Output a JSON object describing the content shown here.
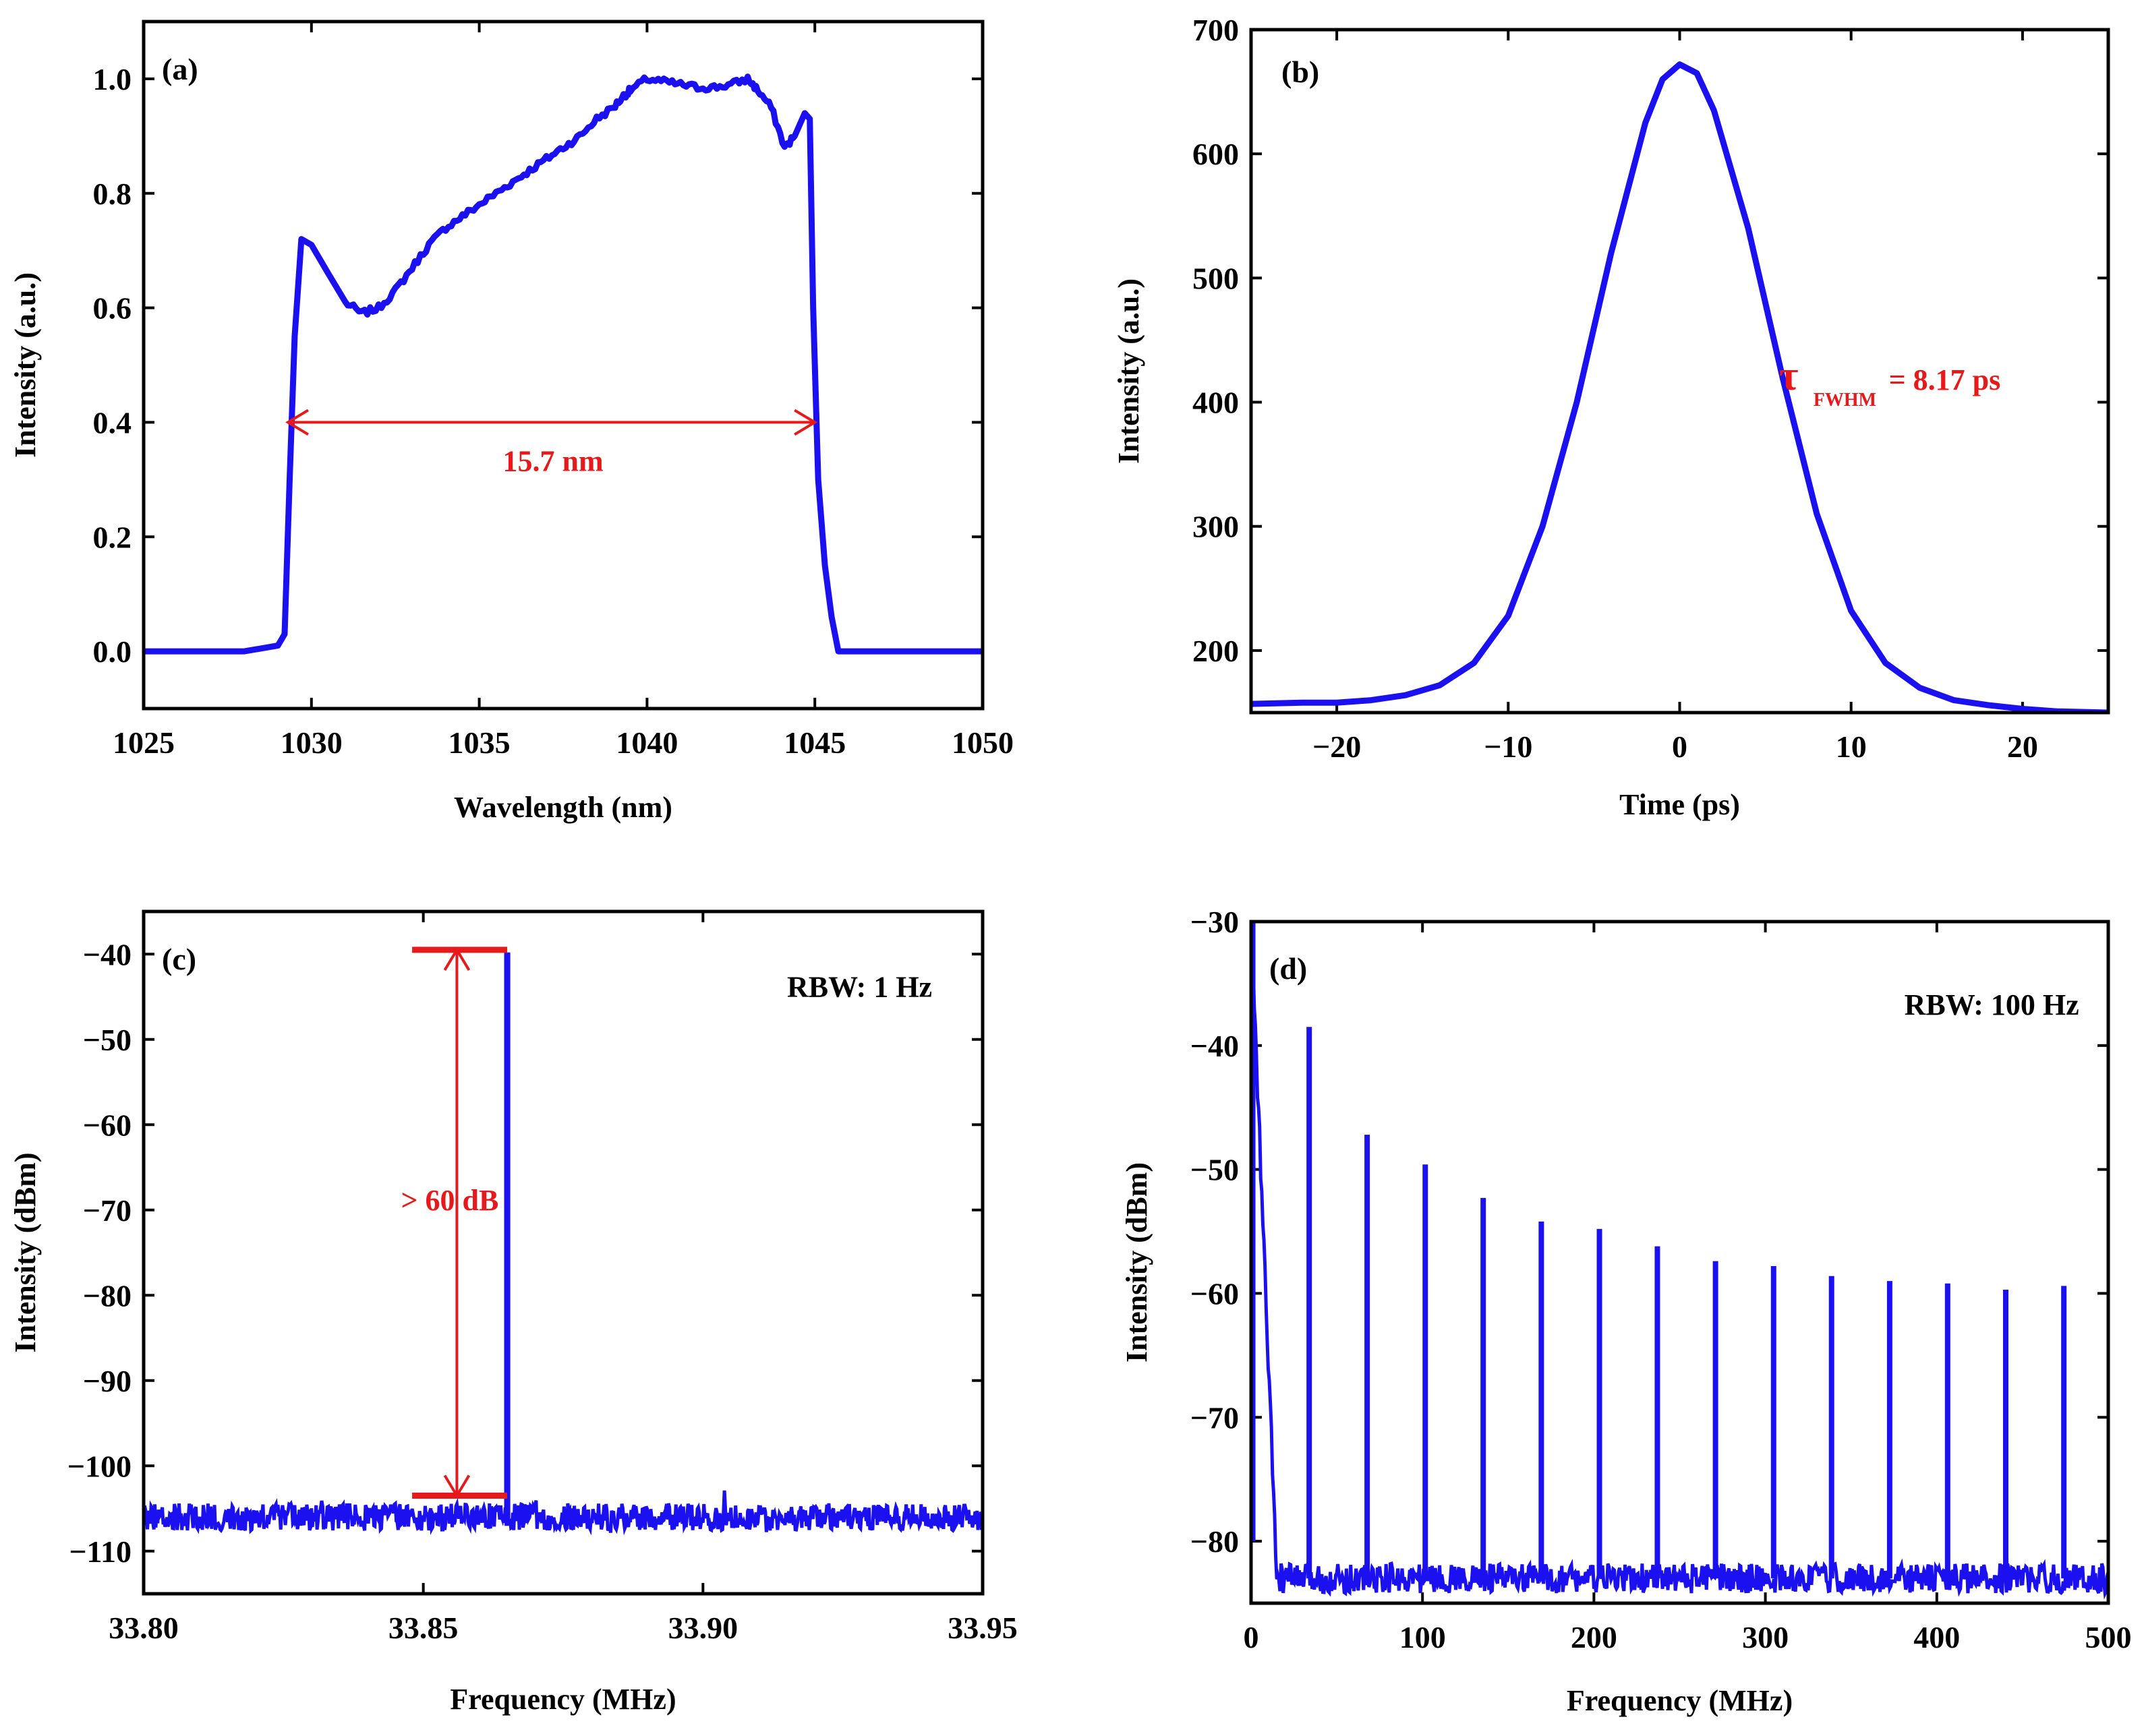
{
  "colors": {
    "trace": "#1a10f0",
    "annotation": "#e8191b",
    "axis": "#000000"
  },
  "chart_data": [
    {
      "panel": "(a)",
      "type": "line",
      "xlabel": "Wavelength (nm)",
      "ylabel": "Intensity (a.u.)",
      "xlim": [
        1025,
        1050
      ],
      "ylim": [
        -0.1,
        1.1
      ],
      "xticks": [
        1025,
        1030,
        1035,
        1040,
        1045,
        1050
      ],
      "xtick_labels": [
        "1025",
        "1030",
        "1035",
        "1040",
        "1045",
        "1050"
      ],
      "yticks": [
        0.0,
        0.2,
        0.4,
        0.6,
        0.8,
        1.0
      ],
      "ytick_labels": [
        "0.0",
        "0.2",
        "0.4",
        "0.6",
        "0.8",
        "1.0"
      ],
      "series": [
        {
          "name": "Spectrum",
          "x": [
            1025,
            1028,
            1029.0,
            1029.2,
            1029.35,
            1029.5,
            1029.7,
            1030.0,
            1030.5,
            1031.0,
            1031.5,
            1032.0,
            1032.5,
            1033.0,
            1033.5,
            1034.0,
            1034.5,
            1035.0,
            1035.5,
            1036.0,
            1036.5,
            1037.0,
            1037.5,
            1038.0,
            1038.5,
            1039.0,
            1039.3,
            1039.5,
            1040.0,
            1040.5,
            1041.0,
            1041.5,
            1042.0,
            1042.5,
            1043.0,
            1043.3,
            1043.7,
            1044.1,
            1044.4,
            1044.7,
            1044.85,
            1044.95,
            1045.1,
            1045.3,
            1045.5,
            1045.7,
            1046.0,
            1050
          ],
          "y": [
            0.0,
            0.0,
            0.01,
            0.03,
            0.3,
            0.55,
            0.72,
            0.71,
            0.66,
            0.61,
            0.59,
            0.6,
            0.63,
            0.67,
            0.71,
            0.74,
            0.76,
            0.78,
            0.8,
            0.82,
            0.84,
            0.86,
            0.88,
            0.9,
            0.93,
            0.95,
            0.97,
            0.98,
            1.0,
            0.995,
            0.99,
            0.985,
            0.985,
            0.99,
            1.0,
            0.98,
            0.95,
            0.88,
            0.9,
            0.94,
            0.93,
            0.6,
            0.3,
            0.15,
            0.06,
            0.0,
            0.0,
            0.0
          ]
        }
      ],
      "annotations": [
        {
          "type": "double_arrow",
          "from": [
            1029.3,
            0.4
          ],
          "to": [
            1045.0,
            0.4
          ]
        },
        {
          "type": "text",
          "text": "15.7 nm",
          "at": [
            1037.2,
            0.315
          ]
        }
      ]
    },
    {
      "panel": "(b)",
      "type": "line",
      "xlabel": "Time (ps)",
      "ylabel": "Intensity (a.u.)",
      "xlim": [
        -25,
        25
      ],
      "ylim": [
        150,
        700
      ],
      "xticks": [
        -20,
        -10,
        0,
        10,
        20
      ],
      "xtick_labels": [
        "−20",
        "−10",
        "0",
        "10",
        "20"
      ],
      "yticks": [
        200,
        300,
        400,
        500,
        600,
        700
      ],
      "ytick_labels": [
        "200",
        "300",
        "400",
        "500",
        "600",
        "700"
      ],
      "series": [
        {
          "name": "Autocorrelation",
          "x": [
            -25,
            -22,
            -20,
            -18,
            -16,
            -14,
            -12,
            -10,
            -8,
            -6,
            -4,
            -2,
            -1,
            0,
            1,
            2,
            4,
            6,
            8,
            10,
            12,
            14,
            16,
            18,
            20,
            22,
            25
          ],
          "y": [
            157,
            158,
            158,
            160,
            164,
            172,
            190,
            228,
            300,
            400,
            520,
            625,
            660,
            672,
            665,
            635,
            540,
            420,
            310,
            232,
            190,
            170,
            160,
            156,
            153,
            151,
            150
          ]
        }
      ],
      "annotations": [
        {
          "type": "text",
          "text": "τ",
          "at": [
            5.8,
            410
          ]
        },
        {
          "type": "text",
          "text": "FWHM",
          "at": [
            7.8,
            397
          ]
        },
        {
          "type": "text",
          "text": "=  8.17 ps",
          "at": [
            12.2,
            410
          ]
        }
      ]
    },
    {
      "panel": "(c)",
      "type": "line",
      "xlabel": "Frequency (MHz)",
      "ylabel": "Intensity (dBm)",
      "xlim": [
        33.8,
        33.95
      ],
      "ylim": [
        -115,
        -35
      ],
      "xticks": [
        33.8,
        33.85,
        33.9,
        33.95
      ],
      "xtick_labels": [
        "33.80",
        "33.85",
        "33.90",
        "33.95"
      ],
      "yticks": [
        -110,
        -100,
        -90,
        -80,
        -70,
        -60,
        -50,
        -40
      ],
      "ytick_labels": [
        "−110",
        "−100",
        "−90",
        "−80",
        "−70",
        "−60",
        "−50",
        "−40"
      ],
      "noise_floor": -106,
      "series": [
        {
          "name": "RF spectrum",
          "peak_x": 33.865,
          "peak_y": -40
        }
      ],
      "annotations": [
        {
          "type": "hline",
          "x": [
            33.848,
            33.865
          ],
          "y": -39.5
        },
        {
          "type": "hline",
          "x": [
            33.848,
            33.865
          ],
          "y": -103.5
        },
        {
          "type": "double_arrow",
          "from": [
            33.856,
            -39.5
          ],
          "to": [
            33.856,
            -103.5
          ]
        },
        {
          "type": "text",
          "text": "> 60 dB",
          "at": [
            33.846,
            -70
          ]
        },
        {
          "type": "text",
          "text": "RBW: 1 Hz",
          "at": [
            33.928,
            -45
          ]
        }
      ]
    },
    {
      "panel": "(d)",
      "type": "line",
      "xlabel": "Frequency (MHz)",
      "ylabel": "Intensity (dBm)",
      "xlim": [
        0,
        500
      ],
      "ylim": [
        -85,
        -30
      ],
      "xticks": [
        0,
        100,
        200,
        300,
        400,
        500
      ],
      "xtick_labels": [
        "0",
        "100",
        "200",
        "300",
        "400",
        "500"
      ],
      "yticks": [
        -80,
        -70,
        -60,
        -50,
        -40,
        -30
      ],
      "ytick_labels": [
        "−80",
        "−70",
        "−60",
        "−50",
        "−40",
        "−30"
      ],
      "noise_floor": -83,
      "series": [
        {
          "name": "Harmonics",
          "x": [
            33.9,
            67.7,
            101.6,
            135.4,
            169.3,
            203.2,
            237.0,
            270.9,
            304.8,
            338.6,
            372.5,
            406.3,
            440.2,
            474.1
          ],
          "y": [
            -38.5,
            -47.2,
            -49.6,
            -52.3,
            -54.2,
            -54.8,
            -56.2,
            -57.4,
            -57.8,
            -58.6,
            -59.0,
            -59.2,
            -59.7,
            -59.4
          ]
        }
      ],
      "annotations": [
        {
          "type": "text",
          "text": "RBW: 100 Hz",
          "at": [
            432,
            -37.5
          ]
        }
      ]
    }
  ]
}
